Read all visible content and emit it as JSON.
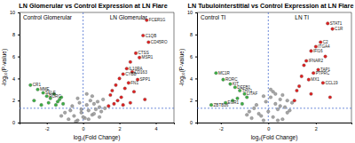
{
  "chart_data": [
    {
      "type": "scatter",
      "title": "LN Glomerular vs Control Expression at LN Flare",
      "x_label": "log₂(Fold Change)",
      "y_label": "-log₁₀(P-value)",
      "region_labels": [
        "Control Glomerular",
        "LN Glomerular"
      ],
      "xlim": [
        -3.5,
        5
      ],
      "xticks": [
        -2,
        0,
        2,
        4
      ],
      "ylim": [
        0,
        10
      ],
      "yticks": [
        0,
        2,
        4,
        6,
        8,
        10
      ],
      "reference_lines": {
        "x": 0,
        "y": 1.3
      },
      "series": [
        {
          "color": "#a6a6a6",
          "x": [
            -0.8,
            -0.5,
            -0.3,
            -0.1,
            0.1,
            0.3,
            0.5,
            0.7,
            0.9,
            -0.6,
            -0.2,
            0.2,
            0.4,
            0.6,
            1.0,
            -1.0,
            -0.4,
            0.0,
            0.8,
            1.2,
            -0.7,
            0.3,
            0.5,
            -0.3,
            0.6,
            1.1,
            -1.2,
            0.2,
            0.9,
            -0.1
          ],
          "values": [
            0.3,
            0.6,
            0.2,
            0.9,
            0.4,
            1.1,
            0.7,
            1.2,
            0.5,
            1.5,
            1.8,
            1.6,
            2.0,
            0.8,
            1.0,
            0.9,
            0.1,
            0.5,
            1.9,
            1.3,
            1.1,
            0.3,
            2.4,
            2.2,
            1.7,
            2.1,
            0.6,
            2.6,
            1.4,
            1.2
          ]
        },
        {
          "color": "#e02020",
          "x": [
            3.5,
            3.3,
            3.6,
            2.9,
            3.1,
            2.6,
            2.4,
            2.7,
            2.2,
            2.0,
            3.0,
            2.5,
            1.8,
            2.3,
            1.6,
            2.8,
            1.5,
            2.1,
            3.4,
            1.9,
            2.6,
            1.7,
            2.2,
            1.4
          ],
          "values": [
            9.3,
            7.9,
            7.3,
            6.3,
            5.9,
            5.5,
            4.9,
            4.6,
            4.4,
            4.0,
            3.9,
            3.6,
            3.4,
            3.1,
            2.9,
            2.8,
            2.5,
            2.3,
            2.1,
            2.0,
            1.8,
            1.7,
            1.6,
            1.5
          ]
        },
        {
          "color": "#3cb043",
          "x": [
            -2.9,
            -2.5,
            -2.2,
            -2.0,
            -1.8,
            -1.6,
            -1.4,
            -1.3,
            -1.1,
            -2.7,
            -1.5,
            -1.9,
            -1.2,
            -2.3
          ],
          "values": [
            3.4,
            3.0,
            2.7,
            2.4,
            2.2,
            2.6,
            1.9,
            2.1,
            1.7,
            2.0,
            1.6,
            1.8,
            2.3,
            1.6
          ]
        }
      ],
      "annotations": [
        {
          "text": "FCER1G",
          "x": 3.5,
          "y": 9.3
        },
        {
          "text": "C1QB",
          "x": 3.3,
          "y": 7.9
        },
        {
          "text": "CD45RO",
          "x": 3.6,
          "y": 7.3
        },
        {
          "text": "CTSS",
          "x": 2.9,
          "y": 6.3
        },
        {
          "text": "MSR1",
          "x": 3.1,
          "y": 5.9
        },
        {
          "text": "IL10RA",
          "x": 2.4,
          "y": 4.9
        },
        {
          "text": "CD163",
          "x": 2.7,
          "y": 4.6
        },
        {
          "text": "CYBB",
          "x": 2.2,
          "y": 4.4
        },
        {
          "text": "SPP1",
          "x": 3.0,
          "y": 3.9
        },
        {
          "text": "FN1",
          "x": 2.5,
          "y": 3.6
        },
        {
          "text": "CR1",
          "x": -2.9,
          "y": 3.4
        },
        {
          "text": "MME",
          "x": -2.5,
          "y": 3.0
        },
        {
          "text": "SELE",
          "x": -2.2,
          "y": 2.7
        },
        {
          "text": "RORC",
          "x": -2.0,
          "y": 2.4
        }
      ]
    },
    {
      "type": "scatter",
      "title": "LN Tubulointerstitial vs Control Expression at LN Flare",
      "x_label": "log₂(Fold Change)",
      "y_label": "-log₁₀(P-value)",
      "region_labels": [
        "Control TI",
        "LN TI"
      ],
      "xlim": [
        -3,
        3.5
      ],
      "xticks": [
        -2,
        0,
        2
      ],
      "ylim": [
        0,
        10
      ],
      "yticks": [
        0,
        2,
        4,
        6,
        8,
        10
      ],
      "reference_lines": {
        "x": 0,
        "y": 1.3
      },
      "series": [
        {
          "color": "#a6a6a6",
          "x": [
            -0.7,
            -0.4,
            -0.2,
            0.0,
            0.2,
            0.4,
            0.6,
            0.8,
            -0.5,
            -0.1,
            0.1,
            0.3,
            0.5,
            0.7,
            0.9,
            -0.8,
            -0.3,
            0.2,
            0.6,
            1.0,
            -0.6,
            0.4,
            -0.2,
            0.8,
            0.1,
            -0.9,
            0.5,
            0.3
          ],
          "values": [
            0.4,
            0.8,
            0.2,
            1.0,
            0.5,
            1.2,
            0.3,
            0.9,
            1.6,
            1.9,
            2.3,
            1.7,
            2.1,
            1.4,
            1.1,
            1.0,
            0.6,
            2.8,
            2.5,
            1.8,
            1.3,
            0.2,
            2.4,
            2.0,
            3.0,
            0.7,
            1.5,
            2.6
          ]
        },
        {
          "color": "#e02020",
          "x": [
            2.5,
            2.7,
            2.2,
            2.0,
            1.8,
            2.4,
            1.6,
            1.5,
            2.1,
            1.9,
            1.4,
            1.7,
            2.3,
            1.3,
            1.2,
            1.8,
            2.6,
            1.1
          ],
          "values": [
            9.0,
            8.5,
            7.3,
            6.9,
            6.5,
            6.0,
            5.6,
            5.2,
            4.8,
            4.5,
            4.2,
            3.9,
            3.6,
            3.3,
            2.9,
            2.6,
            2.3,
            2.0
          ]
        },
        {
          "color": "#3cb043",
          "x": [
            -2.2,
            -1.9,
            -1.6,
            -1.4,
            -1.2,
            -1.0,
            -0.9,
            -1.5,
            -1.8,
            -1.1,
            -2.4,
            -1.3
          ],
          "values": [
            4.5,
            3.9,
            3.5,
            3.2,
            2.9,
            2.6,
            2.3,
            2.0,
            1.8,
            1.7,
            1.6,
            2.2
          ]
        }
      ],
      "annotations": [
        {
          "text": "STAT1",
          "x": 2.5,
          "y": 9.0
        },
        {
          "text": "C1R",
          "x": 2.7,
          "y": 8.5
        },
        {
          "text": "C2",
          "x": 2.2,
          "y": 7.3
        },
        {
          "text": "ITGA4",
          "x": 2.0,
          "y": 6.9
        },
        {
          "text": "IFI16",
          "x": 1.8,
          "y": 6.5
        },
        {
          "text": "IFNAR2",
          "x": 1.6,
          "y": 5.6
        },
        {
          "text": "TAP1",
          "x": 2.1,
          "y": 4.8
        },
        {
          "text": "PTPRC",
          "x": 1.9,
          "y": 4.5
        },
        {
          "text": "MX1",
          "x": 1.7,
          "y": 3.9
        },
        {
          "text": "CCL19",
          "x": 2.3,
          "y": 3.6
        },
        {
          "text": "MC1R",
          "x": -2.2,
          "y": 4.5
        },
        {
          "text": "RORC",
          "x": -1.9,
          "y": 3.9
        },
        {
          "text": "KIT",
          "x": -1.6,
          "y": 3.5
        },
        {
          "text": "DEFB1",
          "x": -1.4,
          "y": 3.2
        },
        {
          "text": "THY1",
          "x": -1.2,
          "y": 2.9
        },
        {
          "text": "LITAF",
          "x": -1.0,
          "y": 2.6
        },
        {
          "text": "EGR1",
          "x": -1.8,
          "y": 1.8
        },
        {
          "text": "ZBTB16",
          "x": -2.4,
          "y": 1.6
        }
      ]
    }
  ]
}
